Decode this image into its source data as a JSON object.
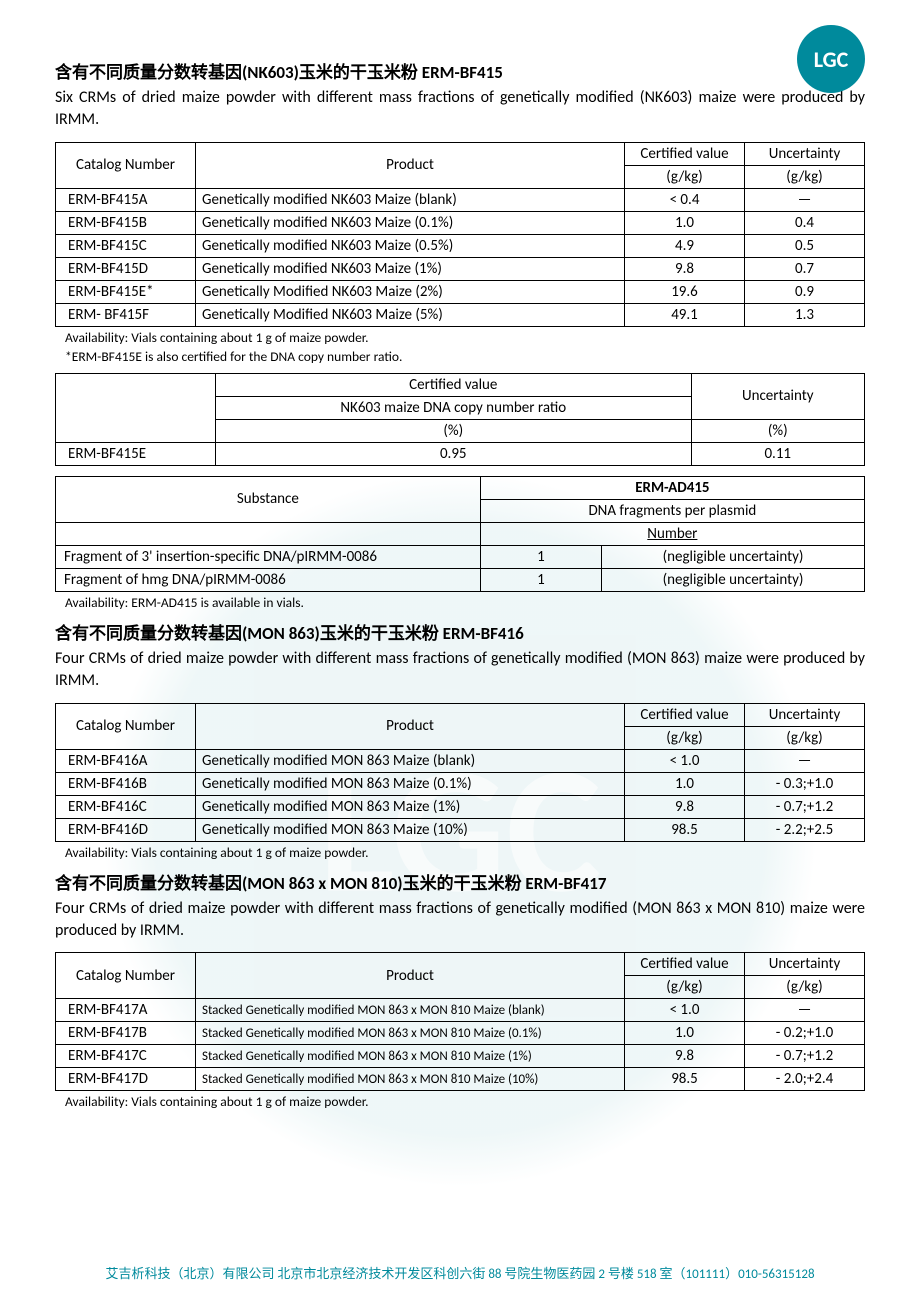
{
  "logo_text": "LGC",
  "sections": [
    {
      "title": "含有不同质量分数转基因(NK603)玉米的干玉米粉 ERM-BF415",
      "desc": "Six CRMs of dried maize powder with different mass fractions of genetically modified (NK603) maize were produced by IRMM.",
      "table": {
        "headers": {
          "c1": "Catalog Number",
          "c2": "Product",
          "c3a": "Certified value",
          "c3b": "(g/kg)",
          "c4a": "Uncertainty",
          "c4b": "(g/kg)"
        },
        "rows": [
          {
            "cat": "ERM-BF415A",
            "prod": "Genetically modified NK603 Maize (blank)",
            "cv": "< 0.4",
            "unc": "—"
          },
          {
            "cat": "ERM-BF415B",
            "prod": "Genetically modified NK603 Maize (0.1%)",
            "cv": "1.0",
            "unc": "0.4"
          },
          {
            "cat": "ERM-BF415C",
            "prod": "Genetically modified NK603 Maize (0.5%)",
            "cv": "4.9",
            "unc": "0.5"
          },
          {
            "cat": "ERM-BF415D",
            "prod": "Genetically modified NK603 Maize (1%)",
            "cv": "9.8",
            "unc": "0.7"
          },
          {
            "cat": "ERM-BF415E*",
            "prod": "Genetically Modified NK603 Maize (2%)",
            "cv": "19.6",
            "unc": "0.9"
          },
          {
            "cat": "ERM- BF415F",
            "prod": "Genetically Modified NK603 Maize (5%)",
            "cv": "49.1",
            "unc": "1.3"
          }
        ]
      },
      "notes": [
        "Availability: Vials containing about 1 g of maize powder.",
        "*ERM-BF415E is also certified for the DNA copy number ratio."
      ],
      "table2": {
        "h1": "Certified value",
        "h2": "NK603 maize DNA copy number ratio",
        "h3": "(%)",
        "h4": "Uncertainty",
        "h5": "(%)",
        "rows": [
          {
            "cat": "ERM-BF415E",
            "cv": "0.95",
            "unc": "0.11"
          }
        ]
      },
      "table3": {
        "h1": "Substance",
        "h2": "ERM-AD415",
        "h3": "DNA fragments per plasmid",
        "h4": "Number",
        "rows": [
          {
            "sub": "Fragment of 3' insertion-specific DNA/pIRMM-0086",
            "num": "1",
            "unc": "(negligible uncertainty)"
          },
          {
            "sub": "Fragment of hmg DNA/pIRMM-0086",
            "num": "1",
            "unc": "(negligible uncertainty)"
          }
        ]
      },
      "note3": "Availability: ERM-AD415 is available in vials."
    },
    {
      "title": "含有不同质量分数转基因(MON 863)玉米的干玉米粉 ERM-BF416",
      "desc": "Four CRMs of dried maize powder with different mass fractions of genetically modified (MON 863) maize were produced by IRMM.",
      "table": {
        "headers": {
          "c1": "Catalog Number",
          "c2": "Product",
          "c3a": "Certified value",
          "c3b": "(g/kg)",
          "c4a": "Uncertainty",
          "c4b": "(g/kg)"
        },
        "rows": [
          {
            "cat": "ERM-BF416A",
            "prod": "Genetically modified MON 863 Maize (blank)",
            "cv": "< 1.0",
            "unc": "—"
          },
          {
            "cat": "ERM-BF416B",
            "prod": "Genetically modified MON 863 Maize (0.1%)",
            "cv": "1.0",
            "unc": "- 0.3;+1.0"
          },
          {
            "cat": "ERM-BF416C",
            "prod": "Genetically modified MON 863 Maize (1%)",
            "cv": "9.8",
            "unc": "- 0.7;+1.2"
          },
          {
            "cat": "ERM-BF416D",
            "prod": "Genetically modified MON 863 Maize (10%)",
            "cv": "98.5",
            "unc": "- 2.2;+2.5"
          }
        ]
      },
      "notes": [
        "Availability: Vials containing about 1 g of maize powder."
      ]
    },
    {
      "title": "含有不同质量分数转基因(MON 863 x MON 810)玉米的干玉米粉 ERM-BF417",
      "desc": "Four CRMs of dried maize powder with different mass fractions of genetically modified (MON 863 x MON 810) maize were produced by IRMM.",
      "table": {
        "headers": {
          "c1": "Catalog Number",
          "c2": "Product",
          "c3a": "Certified value",
          "c3b": "(g/kg)",
          "c4a": "Uncertainty",
          "c4b": "(g/kg)"
        },
        "rows": [
          {
            "cat": "ERM-BF417A",
            "prod": "Stacked Genetically modified MON 863 x MON 810 Maize (blank)",
            "cv": "< 1.0",
            "unc": "—",
            "small": true
          },
          {
            "cat": "ERM-BF417B",
            "prod": "Stacked Genetically modified MON 863 x MON 810 Maize (0.1%)",
            "cv": "1.0",
            "unc": "- 0.2;+1.0",
            "small": true
          },
          {
            "cat": "ERM-BF417C",
            "prod": "Stacked Genetically modified MON 863 x MON 810 Maize (1%)",
            "cv": "9.8",
            "unc": "- 0.7;+1.2",
            "small": true
          },
          {
            "cat": "ERM-BF417D",
            "prod": "Stacked Genetically modified MON 863 x MON 810 Maize (10%)",
            "cv": "98.5",
            "unc": "- 2.0;+2.4",
            "small": true
          }
        ]
      },
      "notes": [
        "Availability: Vials containing about 1 g of maize powder."
      ]
    }
  ],
  "footer": "艾吉析科技（北京）有限公司 北京市北京经济技术开发区科创六街 88 号院生物医药园 2 号楼 518 室（101111）010-56315128"
}
